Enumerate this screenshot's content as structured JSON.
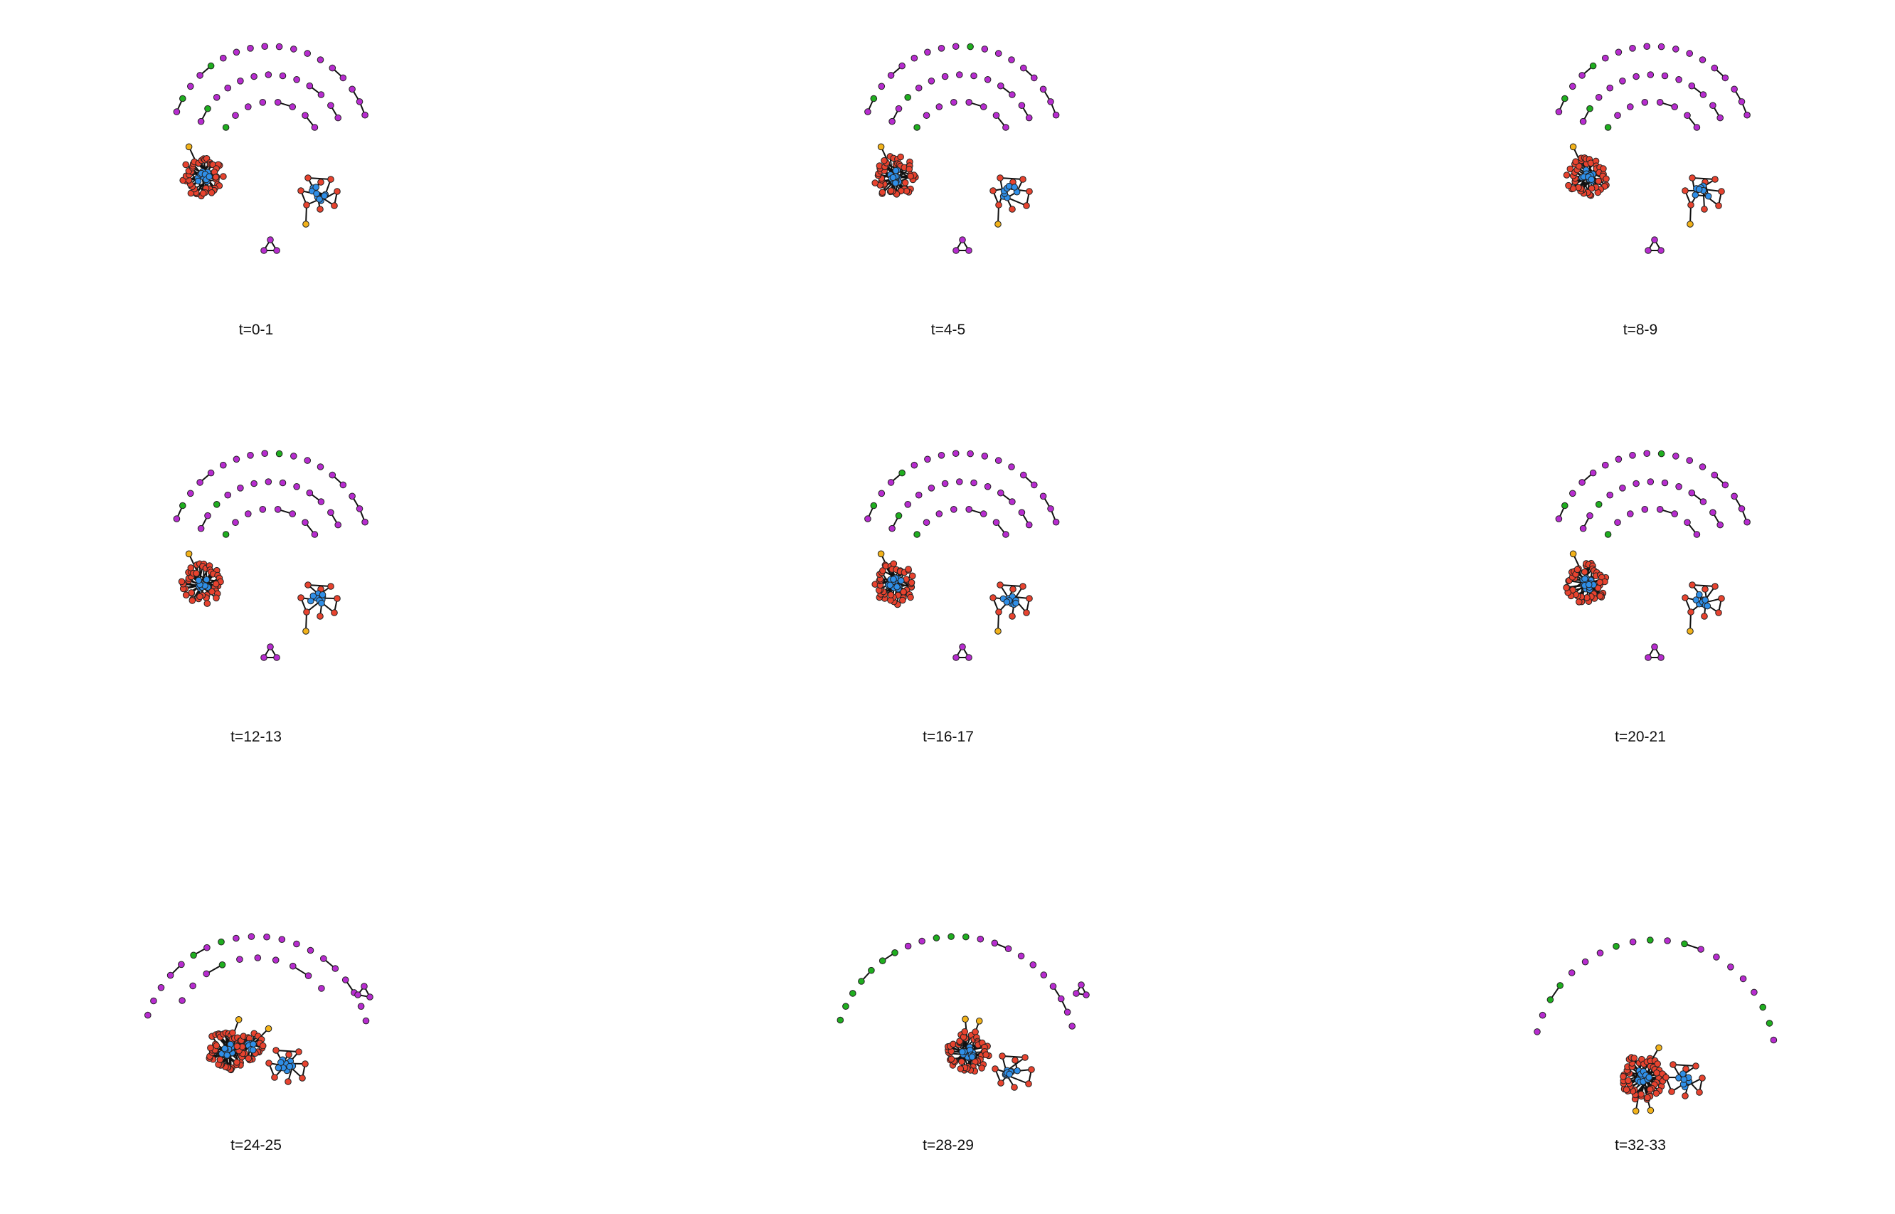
{
  "colors": {
    "community-red": "#e8432f",
    "community-blue": "#2f8fe8",
    "magenta": "#b72ccf",
    "green": "#1fae1f",
    "orange": "#f2b21a",
    "edge": "#111111",
    "node-outline": "#222222"
  },
  "panels": [
    {
      "label": "t=0-1",
      "stage": 0
    },
    {
      "label": "t=4-5",
      "stage": 0
    },
    {
      "label": "t=8-9",
      "stage": 0
    },
    {
      "label": "t=12-13",
      "stage": 0
    },
    {
      "label": "t=16-17",
      "stage": 0
    },
    {
      "label": "t=20-21",
      "stage": 0
    },
    {
      "label": "t=24-25",
      "stage": 1
    },
    {
      "label": "t=28-29",
      "stage": 2
    },
    {
      "label": "t=32-33",
      "stage": 3
    }
  ]
}
